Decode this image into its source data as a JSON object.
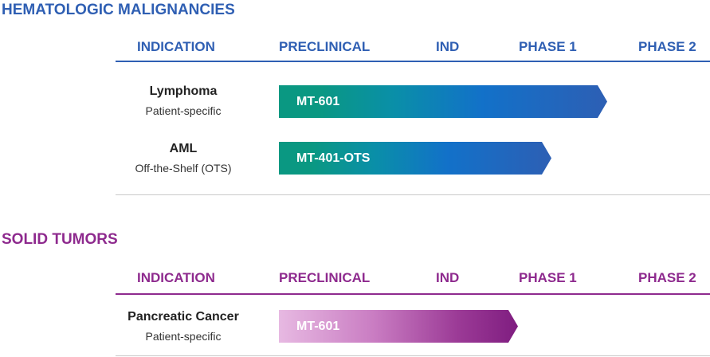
{
  "sections": [
    {
      "title": "HEMATOLOGIC MALIGNANCIES",
      "title_color": "#2f5fb3",
      "columns": [
        "INDICATION",
        "PRECLINICAL",
        "IND",
        "PHASE 1",
        "PHASE 2"
      ],
      "rows": [
        {
          "indication": "Lymphoma",
          "subtitle": "Patient-specific",
          "program": "MT-601",
          "bar_style": "teal"
        },
        {
          "indication": "AML",
          "subtitle": "Off-the-Shelf (OTS)",
          "program": "MT-401-OTS",
          "bar_style": "teal"
        }
      ]
    },
    {
      "title": "SOLID TUMORS",
      "title_color": "#8e2a8e",
      "columns": [
        "INDICATION",
        "PRECLINICAL",
        "IND",
        "PHASE 1",
        "PHASE 2"
      ],
      "rows": [
        {
          "indication": "Pancreatic Cancer",
          "subtitle": "Patient-specific",
          "program": "MT-601",
          "bar_style": "purple"
        }
      ]
    }
  ],
  "colors": {
    "header_blue": "#2f5fb3",
    "solid_purple": "#8e2a8e",
    "teal_start": "#0a9882",
    "blue_end": "#2d5fb4",
    "purple_start": "#e7b9e2",
    "purple_end": "#7f1d80"
  }
}
